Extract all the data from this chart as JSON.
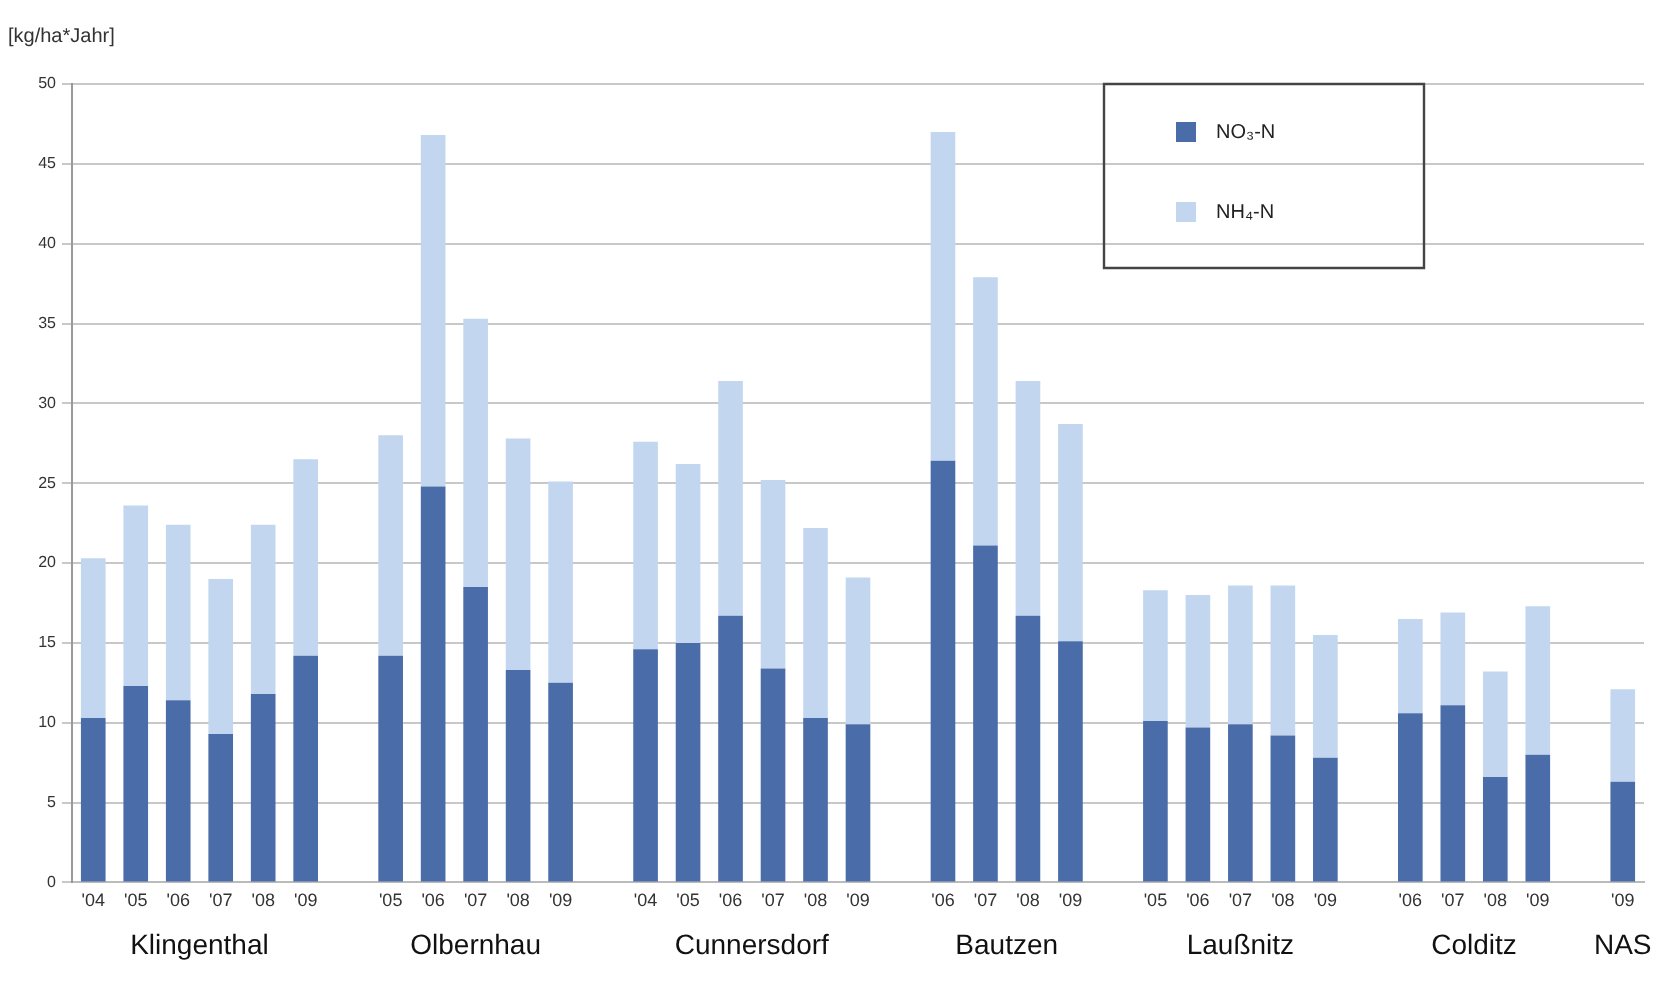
{
  "chart_data": {
    "type": "bar",
    "ylabel": "[kg/ha*Jahr]",
    "stacked": true,
    "categories": [
      "'04",
      "'05",
      "'06",
      "'07",
      "'08",
      "'09",
      null,
      "'05",
      "'06",
      "'07",
      "'08",
      "'09",
      null,
      "'04",
      "'05",
      "'06",
      "'07",
      "'08",
      "'09",
      null,
      "'06",
      "'07",
      "'08",
      "'09",
      null,
      "'05",
      "'06",
      "'07",
      "'08",
      "'09",
      null,
      "'06",
      "'07",
      "'08",
      "'09",
      null,
      "'09"
    ],
    "series": [
      {
        "name": "NO₃-N",
        "color": "#4a6ca8",
        "values": [
          10.3,
          12.3,
          11.4,
          9.3,
          11.8,
          14.2,
          null,
          14.2,
          24.8,
          18.5,
          13.3,
          12.5,
          null,
          14.6,
          15.0,
          16.7,
          13.4,
          10.3,
          9.9,
          null,
          26.4,
          21.1,
          16.7,
          15.1,
          null,
          10.1,
          9.7,
          9.9,
          9.2,
          7.8,
          null,
          10.6,
          11.1,
          6.6,
          8.0,
          null,
          6.3
        ]
      },
      {
        "name": "NH₄-N",
        "color": "#c3d6f0",
        "values": [
          10.0,
          11.3,
          11.0,
          9.7,
          10.6,
          12.3,
          null,
          13.8,
          22.0,
          16.8,
          14.5,
          12.6,
          null,
          13.0,
          11.2,
          14.7,
          11.8,
          11.9,
          9.2,
          null,
          20.6,
          16.8,
          14.7,
          13.6,
          null,
          8.2,
          8.3,
          8.7,
          9.4,
          7.7,
          null,
          5.9,
          5.8,
          6.6,
          9.3,
          null,
          5.8
        ]
      }
    ],
    "ylim": [
      0,
      50
    ],
    "yticks": [
      0,
      5,
      10,
      15,
      20,
      25,
      30,
      35,
      40,
      45,
      50
    ],
    "grid": "y",
    "legend": "top right",
    "annotations": [
      "Klingenthal",
      "Olbernhau",
      "Cunnersdorf",
      "Bautzen",
      "Laußnitz",
      "Colditz",
      "NAS"
    ]
  }
}
